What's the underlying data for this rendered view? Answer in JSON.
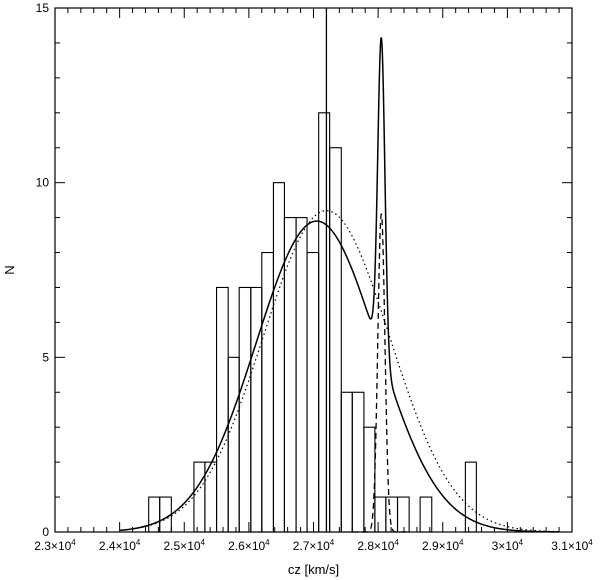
{
  "chart_data": {
    "type": "histogram",
    "xlabel": "cz [km/s]",
    "ylabel": "N",
    "xlim": [
      23000,
      31000
    ],
    "ylim": [
      0,
      15
    ],
    "x_ticks": [
      {
        "value": 23000,
        "mant": "2.3×10",
        "exp": "4"
      },
      {
        "value": 24000,
        "mant": "2.4×10",
        "exp": "4"
      },
      {
        "value": 25000,
        "mant": "2.5×10",
        "exp": "4"
      },
      {
        "value": 26000,
        "mant": "2.6×10",
        "exp": "4"
      },
      {
        "value": 27000,
        "mant": "2.7×10",
        "exp": "4"
      },
      {
        "value": 28000,
        "mant": "2.8×10",
        "exp": "4"
      },
      {
        "value": 29000,
        "mant": "2.9×10",
        "exp": "4"
      },
      {
        "value": 30000,
        "mant": "3×10",
        "exp": "4"
      },
      {
        "value": 31000,
        "mant": "3.1×10",
        "exp": "4"
      }
    ],
    "y_ticks": [
      0,
      5,
      10,
      15
    ],
    "histogram": {
      "bin_edges": [
        24450,
        24620,
        24800,
        24980,
        25150,
        25320,
        25500,
        25680,
        25850,
        26030,
        26200,
        26380,
        26550,
        26730,
        26900,
        27080,
        27250,
        27430,
        27600,
        27780,
        27950,
        28120,
        28300,
        28480,
        28650,
        28830,
        29000,
        29180,
        29350,
        29520,
        29700,
        29880,
        30050,
        30230,
        30400,
        30580
      ],
      "counts": [
        1,
        1,
        0,
        0,
        2,
        2,
        7,
        5,
        7,
        7,
        8,
        10,
        9,
        9,
        8,
        12,
        11,
        4,
        4,
        3,
        1,
        1,
        1,
        0,
        1,
        0,
        0,
        0,
        2,
        0,
        0,
        0,
        0,
        0,
        0
      ]
    },
    "vertical_line_x": 27200,
    "curves": {
      "single_gaussian": {
        "style": "dotted",
        "amp": 9.2,
        "mean": 27200,
        "sigma": 980
      },
      "main_component": {
        "style": "solid",
        "amp": 8.9,
        "mean": 27050,
        "sigma": 940
      },
      "narrow_component": {
        "style": "dashed",
        "amp": 9.1,
        "mean": 28050,
        "sigma": 55
      },
      "x_range": [
        24000,
        30800
      ]
    }
  }
}
